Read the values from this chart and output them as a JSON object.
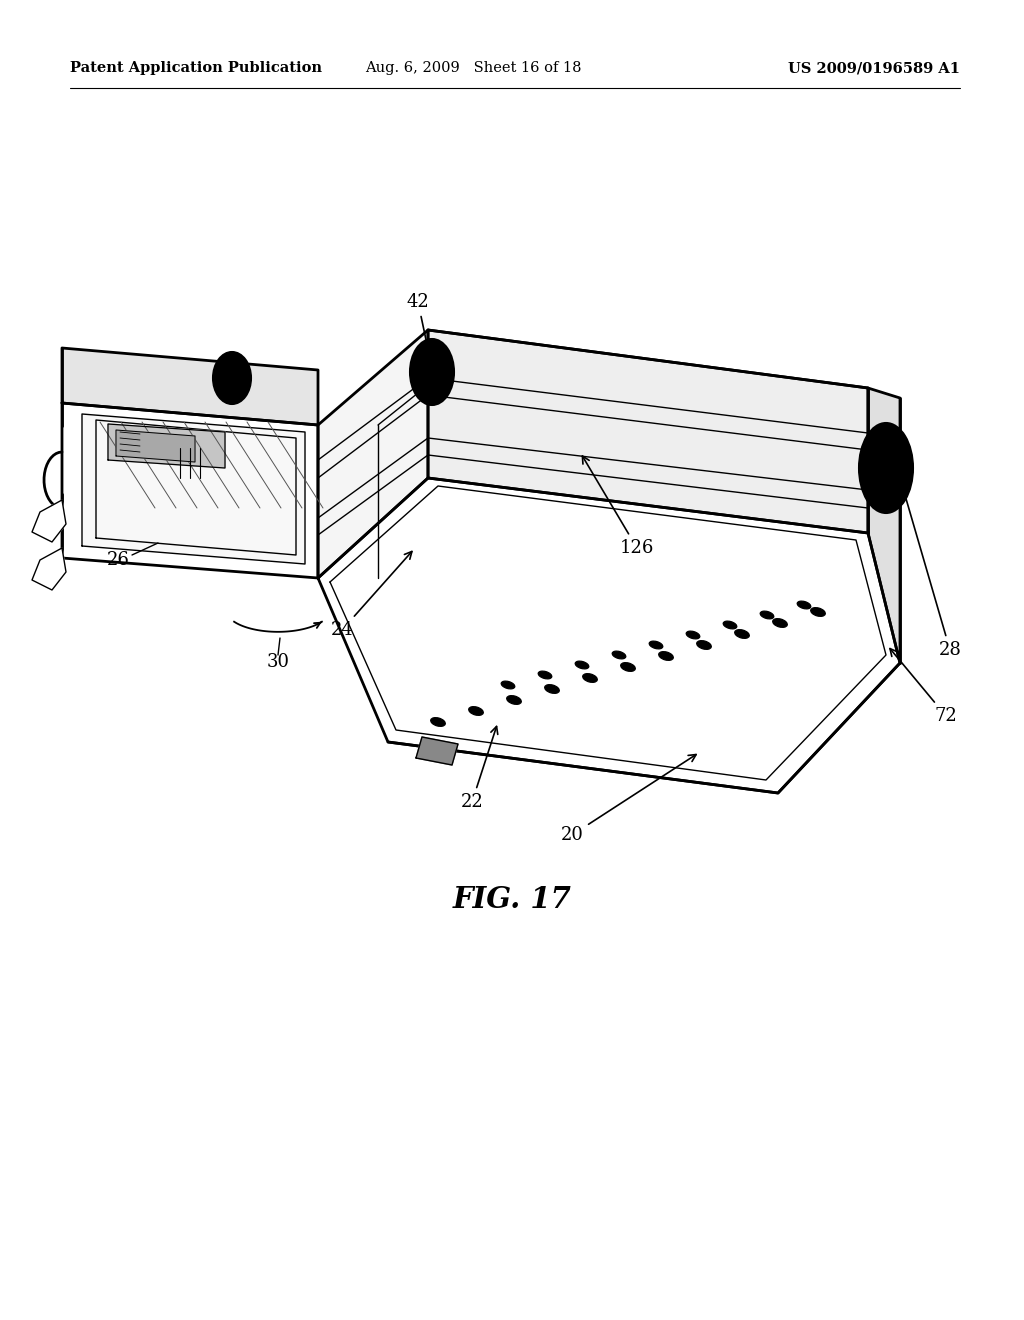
{
  "background_color": "#ffffff",
  "header_left": "Patent Application Publication",
  "header_center": "Aug. 6, 2009   Sheet 16 of 18",
  "header_right": "US 2009/0196589 A1",
  "header_fontsize": 10.5,
  "figure_label": "FIG. 17",
  "fig_label_fontsize": 21,
  "label_fontsize": 13
}
